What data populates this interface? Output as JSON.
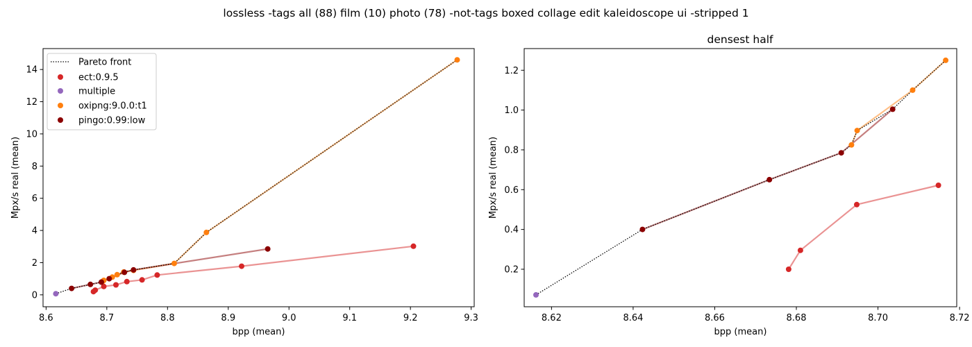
{
  "figure": {
    "suptitle": "lossless -tags all (88) film (10) photo (78) -not-tags boxed collage edit kaleidoscope ui -stripped 1"
  },
  "colors": {
    "ect": "#d62728",
    "multiple": "#9467bd",
    "oxipng": "#ff7f0e",
    "pingo": "#8b0000",
    "pareto": "#000000"
  },
  "chart_data": [
    {
      "type": "scatter",
      "title": "",
      "xlabel": "bpp (mean)",
      "ylabel": "Mpx/s real (mean)",
      "xlim": [
        8.595,
        9.305
      ],
      "ylim": [
        -0.74,
        15.3
      ],
      "xticks": [
        "8.6",
        "8.7",
        "8.8",
        "8.9",
        "9.0",
        "9.1",
        "9.2",
        "9.3"
      ],
      "yticks": [
        "0",
        "2",
        "4",
        "6",
        "8",
        "10",
        "12",
        "14"
      ],
      "legend": {
        "placement": "upper-left",
        "entries": [
          "Pareto front",
          "ect:0.9.5",
          "multiple",
          "oxipng:9.0.0:t1",
          "pingo:0.99:low"
        ]
      },
      "series": [
        {
          "name": "ect:0.9.5",
          "key": "ect",
          "connected": true,
          "points": [
            [
              8.678,
              0.2
            ],
            [
              8.681,
              0.29
            ],
            [
              8.695,
              0.52
            ],
            [
              8.715,
              0.62
            ],
            [
              8.733,
              0.82
            ],
            [
              8.758,
              0.93
            ],
            [
              8.783,
              1.23
            ],
            [
              8.922,
              1.78
            ],
            [
              9.205,
              3.02
            ]
          ]
        },
        {
          "name": "multiple",
          "key": "multiple",
          "connected": false,
          "points": [
            [
              8.616,
              0.07
            ]
          ]
        },
        {
          "name": "oxipng:9.0.0:t1",
          "key": "oxipng",
          "connected": true,
          "points": [
            [
              8.693,
              0.83
            ],
            [
              8.695,
              0.9
            ],
            [
              8.709,
              1.1
            ],
            [
              8.717,
              1.25
            ],
            [
              8.728,
              1.42
            ],
            [
              8.744,
              1.52
            ],
            [
              8.811,
              1.95
            ],
            [
              8.864,
              3.88
            ],
            [
              9.277,
              14.6
            ]
          ]
        },
        {
          "name": "pingo:0.99:low",
          "key": "pingo",
          "connected": true,
          "points": [
            [
              8.642,
              0.4
            ],
            [
              8.673,
              0.65
            ],
            [
              8.691,
              0.79
            ],
            [
              8.704,
              1.0
            ],
            [
              8.729,
              1.4
            ],
            [
              8.744,
              1.55
            ],
            [
              8.965,
              2.85
            ]
          ]
        }
      ],
      "pareto": [
        [
          8.616,
          0.07
        ],
        [
          8.642,
          0.4
        ],
        [
          8.673,
          0.65
        ],
        [
          8.691,
          0.79
        ],
        [
          8.693,
          0.83
        ],
        [
          8.695,
          0.9
        ],
        [
          8.704,
          1.0
        ],
        [
          8.709,
          1.1
        ],
        [
          8.717,
          1.25
        ],
        [
          8.728,
          1.42
        ],
        [
          8.744,
          1.55
        ],
        [
          8.811,
          1.95
        ],
        [
          8.864,
          3.88
        ],
        [
          9.277,
          14.6
        ]
      ]
    },
    {
      "type": "scatter",
      "title": "densest half",
      "xlabel": "bpp (mean)",
      "ylabel": "Mpx/s real (mean)",
      "xlim": [
        8.6133,
        8.7193
      ],
      "ylim": [
        0.0115,
        1.309
      ],
      "xticks": [
        "8.62",
        "8.64",
        "8.66",
        "8.68",
        "8.70",
        "8.72"
      ],
      "yticks": [
        "0.2",
        "0.4",
        "0.6",
        "0.8",
        "1.0",
        "1.2"
      ],
      "series": [
        {
          "name": "ect:0.9.5",
          "key": "ect",
          "connected": true,
          "points": [
            [
              8.6781,
              0.2
            ],
            [
              8.681,
              0.295
            ],
            [
              8.6948,
              0.525
            ],
            [
              8.7148,
              0.622
            ]
          ]
        },
        {
          "name": "multiple",
          "key": "multiple",
          "connected": false,
          "points": [
            [
              8.6162,
              0.071
            ]
          ]
        },
        {
          "name": "oxipng:9.0.0:t1",
          "key": "oxipng",
          "connected": true,
          "points": [
            [
              8.6935,
              0.825
            ],
            [
              8.6949,
              0.897
            ],
            [
              8.7085,
              1.1
            ],
            [
              8.7166,
              1.25
            ]
          ]
        },
        {
          "name": "pingo:0.99:low",
          "key": "pingo",
          "connected": true,
          "points": [
            [
              8.6423,
              0.4
            ],
            [
              8.6734,
              0.65
            ],
            [
              8.691,
              0.785
            ],
            [
              8.7036,
              1.004
            ]
          ]
        }
      ],
      "pareto": [
        [
          8.6162,
          0.071
        ],
        [
          8.6423,
          0.4
        ],
        [
          8.6734,
          0.65
        ],
        [
          8.691,
          0.785
        ],
        [
          8.6935,
          0.825
        ],
        [
          8.6949,
          0.897
        ],
        [
          8.7036,
          1.004
        ],
        [
          8.7085,
          1.1
        ],
        [
          8.7166,
          1.25
        ]
      ]
    }
  ]
}
